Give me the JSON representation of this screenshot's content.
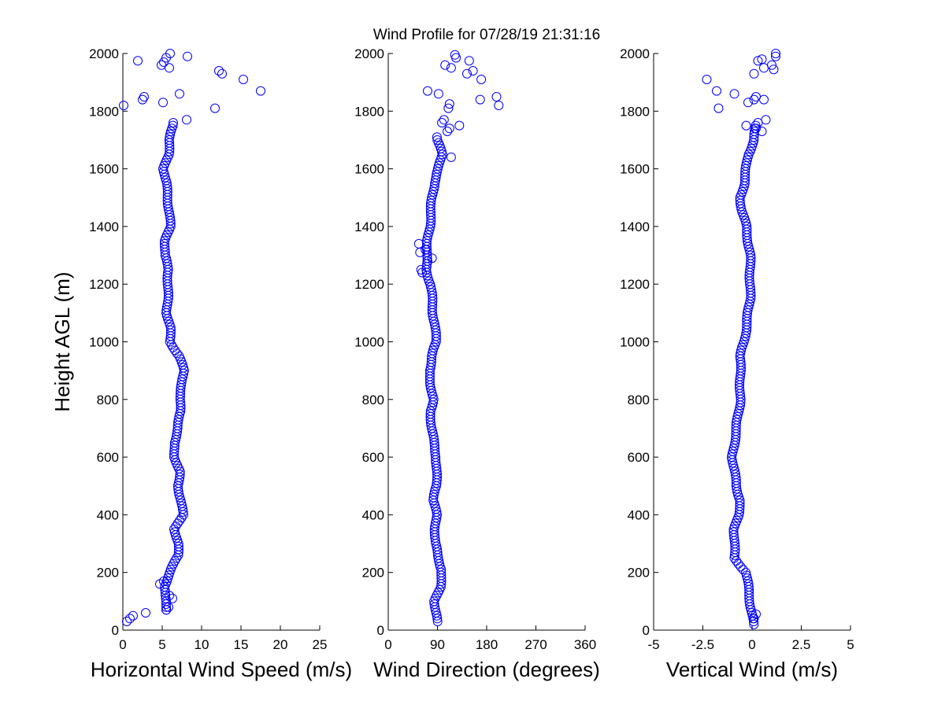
{
  "figure": {
    "title": "Wind Profile for  07/28/19 21:31:16"
  },
  "colors": {
    "marker": "#0000ff",
    "axis": "#000000",
    "background": "#ffffff"
  },
  "chart_data": [
    {
      "type": "scatter",
      "id": "speed",
      "xlabel": "Horizontal Wind Speed (m/s)",
      "ylabel": "Height AGL (m)",
      "xlim": [
        0,
        25
      ],
      "ylim": [
        0,
        2000
      ],
      "xticks": [
        "0",
        "5",
        "10",
        "15",
        "20",
        "25"
      ],
      "xtick_values": [
        0,
        5,
        10,
        15,
        20,
        25
      ],
      "yticks": [
        "0",
        "200",
        "400",
        "600",
        "800",
        "1000",
        "1200",
        "1400",
        "1600",
        "1800",
        "2000"
      ],
      "ytick_values": [
        0,
        200,
        400,
        600,
        800,
        1000,
        1200,
        1400,
        1600,
        1800,
        2000
      ],
      "profile": {
        "heights": [
          0,
          100,
          150,
          200,
          260,
          300,
          350,
          400,
          450,
          500,
          550,
          600,
          650,
          700,
          760,
          800,
          850,
          900,
          950,
          1000,
          1050,
          1100,
          1150,
          1200,
          1250,
          1300,
          1350,
          1400,
          1450,
          1500,
          1550,
          1600,
          1650,
          1700,
          1750
        ],
        "values": [
          5.5,
          5.6,
          5.2,
          6.0,
          7.0,
          7.0,
          6.6,
          7.6,
          7.4,
          7.0,
          7.2,
          6.6,
          6.5,
          7.0,
          7.3,
          7.2,
          7.5,
          7.7,
          7.2,
          6.0,
          6.0,
          5.6,
          5.7,
          5.7,
          5.8,
          5.3,
          5.4,
          6.0,
          5.9,
          5.7,
          5.5,
          5.2,
          5.8,
          5.9,
          6.4
        ],
        "from": 70,
        "to": 1760,
        "step": 10
      },
      "extra_points": [
        [
          0.5,
          30
        ],
        [
          0.9,
          40
        ],
        [
          1.3,
          50
        ],
        [
          2.9,
          60
        ],
        [
          4.7,
          160
        ],
        [
          5.2,
          170
        ],
        [
          5.9,
          120
        ],
        [
          6.3,
          110
        ],
        [
          5.8,
          80
        ],
        [
          5.5,
          70
        ],
        [
          0.1,
          1820
        ],
        [
          2.5,
          1840
        ],
        [
          2.7,
          1850
        ],
        [
          5.1,
          1830
        ],
        [
          7.2,
          1860
        ],
        [
          11.7,
          1810
        ],
        [
          8.1,
          1770
        ],
        [
          17.5,
          1870
        ],
        [
          15.3,
          1910
        ],
        [
          12.2,
          1940
        ],
        [
          12.6,
          1930
        ],
        [
          4.9,
          1960
        ],
        [
          5.9,
          1950
        ],
        [
          1.9,
          1975
        ],
        [
          5.2,
          1970
        ],
        [
          5.5,
          1985
        ],
        [
          6.0,
          2000
        ],
        [
          8.2,
          1990
        ]
      ]
    },
    {
      "type": "scatter",
      "id": "direction",
      "xlabel": "Wind Direction (degrees)",
      "ylabel": "",
      "xlim": [
        0,
        360
      ],
      "ylim": [
        0,
        2000
      ],
      "xticks": [
        "0",
        "90",
        "180",
        "270",
        "360"
      ],
      "xtick_values": [
        0,
        90,
        180,
        270,
        360
      ],
      "yticks": [
        "0",
        "200",
        "400",
        "600",
        "800",
        "1000",
        "1200",
        "1400",
        "1600",
        "1800",
        "2000"
      ],
      "ytick_values": [
        0,
        200,
        400,
        600,
        800,
        1000,
        1200,
        1400,
        1600,
        1800,
        2000
      ],
      "profile": {
        "heights": [
          0,
          50,
          100,
          150,
          210,
          260,
          300,
          350,
          400,
          450,
          500,
          550,
          600,
          650,
          700,
          760,
          800,
          850,
          900,
          950,
          1000,
          1050,
          1100,
          1150,
          1200,
          1250,
          1300,
          1350,
          1400,
          1450,
          1500,
          1550,
          1600,
          1650,
          1700
        ],
        "values": [
          90,
          88,
          85,
          95,
          98,
          90,
          86,
          86,
          88,
          83,
          88,
          88,
          88,
          83,
          80,
          77,
          82,
          78,
          75,
          80,
          88,
          85,
          82,
          80,
          77,
          70,
          70,
          72,
          76,
          78,
          80,
          84,
          92,
          98,
          90
        ],
        "from": 30,
        "to": 1710,
        "step": 10
      },
      "extra_points": [
        [
          56,
          1340
        ],
        [
          58,
          1310
        ],
        [
          60,
          1250
        ],
        [
          62,
          1240
        ],
        [
          68,
          1320
        ],
        [
          72,
          1280
        ],
        [
          80,
          1290
        ],
        [
          98,
          1760
        ],
        [
          102,
          1770
        ],
        [
          108,
          1730
        ],
        [
          112,
          1740
        ],
        [
          130,
          1750
        ],
        [
          115,
          1640
        ],
        [
          92,
          1860
        ],
        [
          72,
          1870
        ],
        [
          110,
          1810
        ],
        [
          112,
          1825
        ],
        [
          168,
          1840
        ],
        [
          198,
          1850
        ],
        [
          202,
          1820
        ],
        [
          104,
          1960
        ],
        [
          115,
          1950
        ],
        [
          124,
          1985
        ],
        [
          122,
          1995
        ],
        [
          148,
          1975
        ],
        [
          155,
          1940
        ],
        [
          144,
          1930
        ],
        [
          170,
          1910
        ]
      ]
    },
    {
      "type": "scatter",
      "id": "vertical",
      "xlabel": "Vertical Wind (m/s)",
      "ylabel": "",
      "xlim": [
        -5,
        5
      ],
      "ylim": [
        0,
        2000
      ],
      "xticks": [
        "-5",
        "-2.5",
        "0",
        "2.5",
        "5"
      ],
      "xtick_values": [
        -5,
        -2.5,
        0,
        2.5,
        5
      ],
      "yticks": [
        "0",
        "200",
        "400",
        "600",
        "800",
        "1000",
        "1200",
        "1400",
        "1600",
        "1800",
        "2000"
      ],
      "ytick_values": [
        0,
        200,
        400,
        600,
        800,
        1000,
        1200,
        1400,
        1600,
        1800,
        2000
      ],
      "profile": {
        "heights": [
          0,
          50,
          100,
          150,
          200,
          250,
          300,
          350,
          400,
          450,
          500,
          550,
          600,
          650,
          700,
          750,
          800,
          850,
          900,
          950,
          1000,
          1050,
          1100,
          1150,
          1200,
          1250,
          1300,
          1350,
          1400,
          1450,
          1500,
          1550,
          1600,
          1650,
          1700,
          1750
        ],
        "values": [
          0.1,
          0.0,
          -0.1,
          -0.2,
          -0.3,
          -0.9,
          -0.9,
          -0.9,
          -0.7,
          -0.6,
          -0.8,
          -0.9,
          -1.0,
          -0.9,
          -0.8,
          -0.7,
          -0.6,
          -0.6,
          -0.6,
          -0.6,
          -0.4,
          -0.3,
          -0.2,
          -0.1,
          -0.1,
          -0.1,
          -0.1,
          -0.2,
          -0.3,
          -0.5,
          -0.6,
          -0.4,
          -0.3,
          -0.2,
          0.1,
          0.2
        ],
        "from": 20,
        "to": 1750,
        "step": 10
      },
      "extra_points": [
        [
          0.1,
          40
        ],
        [
          0.2,
          55
        ],
        [
          -0.3,
          1750
        ],
        [
          0.3,
          1760
        ],
        [
          0.2,
          1740
        ],
        [
          0.5,
          1730
        ],
        [
          0.7,
          1770
        ],
        [
          -1.7,
          1810
        ],
        [
          -1.8,
          1870
        ],
        [
          -0.9,
          1860
        ],
        [
          -0.2,
          1830
        ],
        [
          0.1,
          1840
        ],
        [
          0.2,
          1850
        ],
        [
          0.6,
          1840
        ],
        [
          -2.3,
          1910
        ],
        [
          0.1,
          1930
        ],
        [
          0.6,
          1950
        ],
        [
          0.3,
          1975
        ],
        [
          0.5,
          1980
        ],
        [
          1.0,
          1960
        ],
        [
          1.1,
          1945
        ],
        [
          1.2,
          1990
        ],
        [
          1.2,
          2000
        ]
      ]
    }
  ]
}
